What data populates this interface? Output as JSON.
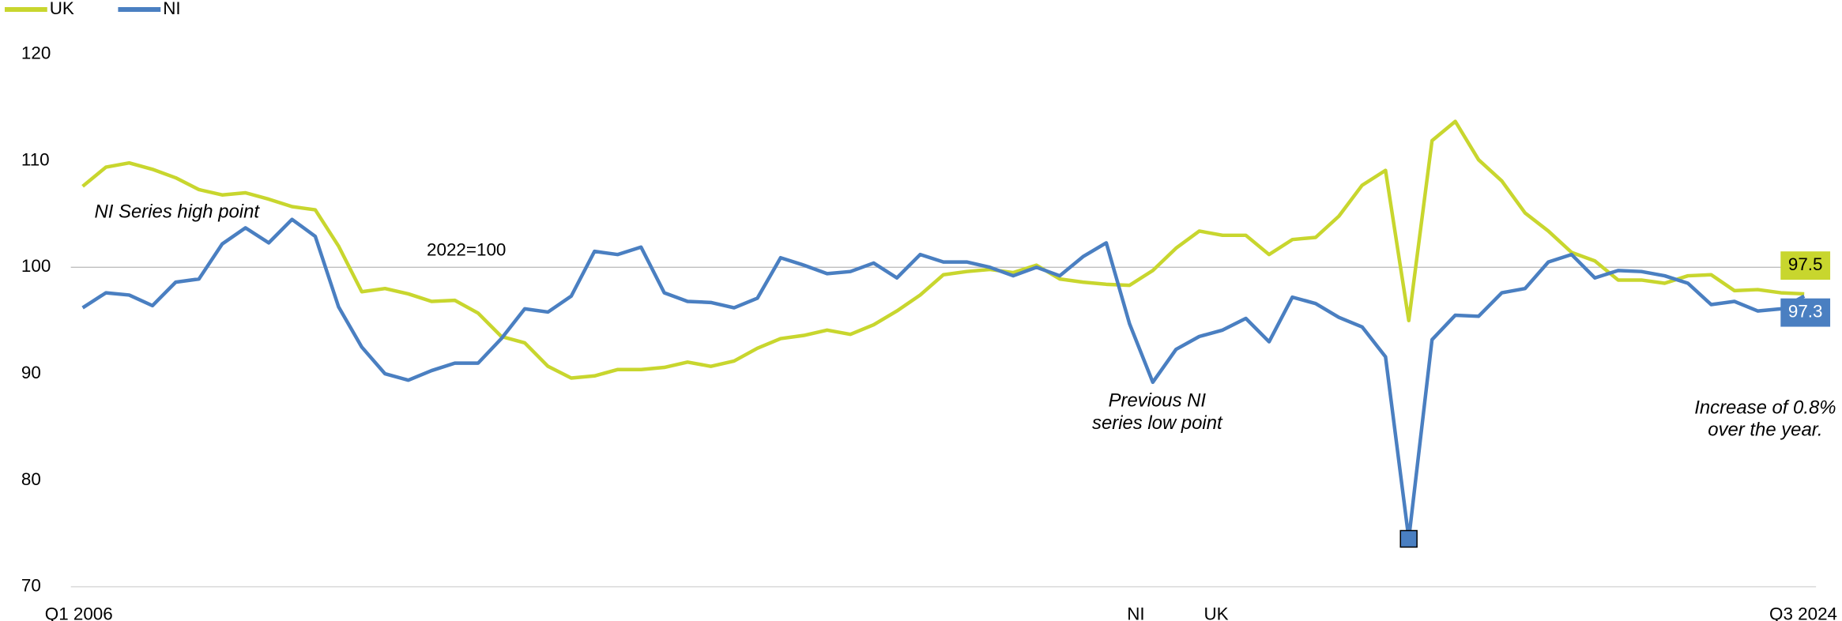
{
  "chart_data": {
    "type": "line",
    "categories": [
      "Q1 2006",
      null,
      null,
      null,
      null,
      null,
      null,
      null,
      null,
      null,
      null,
      null,
      null,
      null,
      null,
      null,
      null,
      null,
      null,
      null,
      null,
      null,
      null,
      null,
      null,
      null,
      null,
      null,
      null,
      null,
      null,
      null,
      null,
      null,
      null,
      null,
      null,
      null,
      null,
      null,
      null,
      null,
      null,
      null,
      null,
      null,
      null,
      null,
      null,
      null,
      null,
      null,
      null,
      null,
      null,
      null,
      null,
      null,
      null,
      null,
      null,
      null,
      null,
      null,
      null,
      null,
      null,
      null,
      null,
      null,
      null,
      null,
      null,
      null,
      "Q3 2024"
    ],
    "series": [
      {
        "name": "UK",
        "color": "#c8d62e",
        "values": [
          107.6,
          109.4,
          109.8,
          109.2,
          108.4,
          107.3,
          106.8,
          107.0,
          106.4,
          105.7,
          105.4,
          102.0,
          97.7,
          98.0,
          97.5,
          96.8,
          96.9,
          95.7,
          93.5,
          92.9,
          90.7,
          89.6,
          89.8,
          90.4,
          90.4,
          90.6,
          91.1,
          90.7,
          91.2,
          92.4,
          93.3,
          93.6,
          94.1,
          93.7,
          94.6,
          95.9,
          97.4,
          99.3,
          99.6,
          99.8,
          99.5,
          100.2,
          98.9,
          98.6,
          98.4,
          98.3,
          99.7,
          101.8,
          103.4,
          103.0,
          103.0,
          101.2,
          102.6,
          102.8,
          104.8,
          107.7,
          109.1,
          95.0,
          111.9,
          113.7,
          110.1,
          108.1,
          105.1,
          103.4,
          101.4,
          100.6,
          98.8,
          98.8,
          98.5,
          99.2,
          99.3,
          97.8,
          97.9,
          97.6,
          97.5
        ]
      },
      {
        "name": "NI",
        "color": "#4a7fc1",
        "values": [
          96.2,
          97.6,
          97.4,
          96.4,
          98.6,
          98.9,
          102.2,
          103.7,
          102.3,
          104.5,
          102.9,
          96.3,
          92.5,
          90.0,
          89.4,
          90.3,
          91.0,
          91.0,
          93.3,
          96.1,
          95.8,
          97.3,
          101.5,
          101.2,
          101.9,
          97.6,
          96.8,
          96.7,
          96.2,
          97.1,
          100.9,
          100.2,
          99.4,
          99.6,
          100.4,
          99.0,
          101.2,
          100.5,
          100.5,
          100.0,
          99.2,
          100.0,
          99.2,
          101.0,
          102.3,
          94.7,
          89.2,
          92.3,
          93.5,
          94.1,
          95.2,
          93.0,
          97.2,
          96.6,
          95.3,
          94.4,
          91.6,
          74.5,
          93.2,
          95.5,
          95.4,
          97.6,
          98.0,
          100.5,
          101.2,
          99.0,
          99.7,
          99.6,
          99.2,
          98.5,
          96.5,
          96.8,
          95.9,
          96.1,
          97.3
        ]
      }
    ],
    "ylim": [
      70,
      120
    ],
    "yticks": [
      70,
      80,
      90,
      100,
      110,
      120
    ],
    "grid": false,
    "legend": "top-left",
    "reference_line": {
      "value": 100,
      "label": "2022=100"
    },
    "annotations": [
      [
        "NI Series high point"
      ],
      [
        "Previous NI",
        "series low point"
      ],
      [
        "Increase of 0.8%",
        "over the year."
      ]
    ],
    "axis_notes": [
      "NI",
      "UK"
    ]
  }
}
